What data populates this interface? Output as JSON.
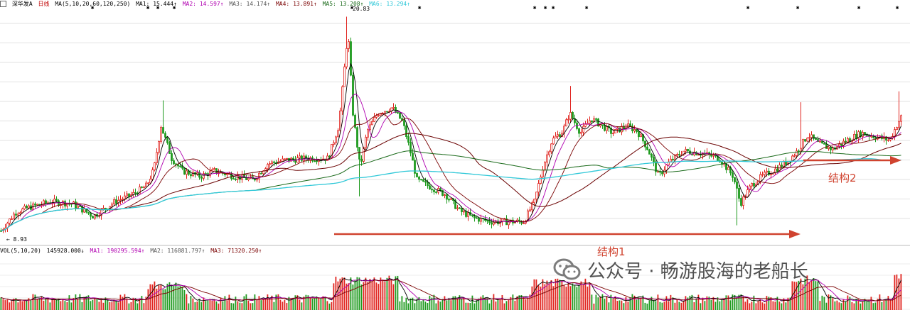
{
  "header": {
    "stock_name": "深华发A",
    "period": "日线",
    "ma_params": "MA(5,10,20,60,120,250)",
    "ma1": "MA1: 15.444↑",
    "ma2": "MA2: 14.597↑",
    "ma3": "MA3: 14.174↑",
    "ma4": "MA4: 13.891↑",
    "ma5": "MA5: 13.208↑",
    "ma6": "MA6: 13.294↑"
  },
  "volume_header": {
    "vol_params": "VOL(5,10,20)",
    "vol": "145928.000↓",
    "ma1": "MA1: 190295.594↑",
    "ma2": "MA2: 116881.797↑",
    "ma3": "MA3: 71320.250↑"
  },
  "annotations": {
    "high_label": "20.83",
    "low_label": "8.93",
    "structure1": "结构1",
    "structure2": "结构2"
  },
  "watermark": {
    "text": "公众号 · 畅游股海的老船长"
  },
  "colors": {
    "up": "#e0241f",
    "down": "#1e9a1e",
    "ma5": "#000000",
    "ma10": "#b000b0",
    "ma20": "#7a0000",
    "ma60": "#6a0000",
    "ma120": "#1a6a1a",
    "ma250": "#30c8d8",
    "arrow": "#d0432f"
  },
  "chart_data": {
    "type": "line",
    "title": "深华发A 日线",
    "price_high": 20.83,
    "price_low": 8.93,
    "keypoints": [
      [
        0,
        9.0
      ],
      [
        20,
        10.0
      ],
      [
        40,
        10.3
      ],
      [
        70,
        10.6
      ],
      [
        100,
        10.5
      ],
      [
        130,
        9.8
      ],
      [
        160,
        10.6
      ],
      [
        185,
        11.0
      ],
      [
        205,
        11.5
      ],
      [
        215,
        12.4
      ],
      [
        225,
        14.8
      ],
      [
        240,
        13.0
      ],
      [
        255,
        12.3
      ],
      [
        280,
        12.0
      ],
      [
        300,
        12.3
      ],
      [
        330,
        12.0
      ],
      [
        355,
        11.8
      ],
      [
        375,
        12.7
      ],
      [
        400,
        12.9
      ],
      [
        430,
        13.0
      ],
      [
        460,
        13.0
      ],
      [
        475,
        14.8
      ],
      [
        488,
        20.0
      ],
      [
        495,
        15.5
      ],
      [
        505,
        12.5
      ],
      [
        515,
        14.5
      ],
      [
        530,
        15.5
      ],
      [
        550,
        15.8
      ],
      [
        565,
        15.0
      ],
      [
        575,
        13.5
      ],
      [
        585,
        11.8
      ],
      [
        600,
        11.5
      ],
      [
        625,
        11.0
      ],
      [
        645,
        10.1
      ],
      [
        665,
        9.7
      ],
      [
        690,
        9.5
      ],
      [
        710,
        9.5
      ],
      [
        735,
        9.5
      ],
      [
        750,
        10.6
      ],
      [
        762,
        12.5
      ],
      [
        775,
        14.0
      ],
      [
        790,
        14.5
      ],
      [
        800,
        15.5
      ],
      [
        815,
        14.4
      ],
      [
        830,
        15.2
      ],
      [
        845,
        14.8
      ],
      [
        860,
        14.4
      ],
      [
        880,
        14.8
      ],
      [
        895,
        14.5
      ],
      [
        910,
        13.5
      ],
      [
        925,
        12.0
      ],
      [
        940,
        12.8
      ],
      [
        960,
        13.4
      ],
      [
        985,
        13.3
      ],
      [
        1010,
        13.0
      ],
      [
        1030,
        12.0
      ],
      [
        1040,
        10.5
      ],
      [
        1055,
        11.5
      ],
      [
        1070,
        12.0
      ],
      [
        1090,
        12.4
      ],
      [
        1105,
        12.8
      ],
      [
        1120,
        13.4
      ],
      [
        1135,
        14.3
      ],
      [
        1150,
        13.8
      ],
      [
        1170,
        13.5
      ],
      [
        1190,
        14.0
      ],
      [
        1210,
        14.4
      ],
      [
        1230,
        14.2
      ],
      [
        1250,
        14.0
      ],
      [
        1262,
        15.0
      ],
      [
        1268,
        15.4
      ]
    ],
    "markers": [
      {
        "day": 487,
        "price": 20.83,
        "label": "20.83"
      },
      {
        "day": 8,
        "price": 8.93,
        "label": "8.93"
      }
    ]
  }
}
